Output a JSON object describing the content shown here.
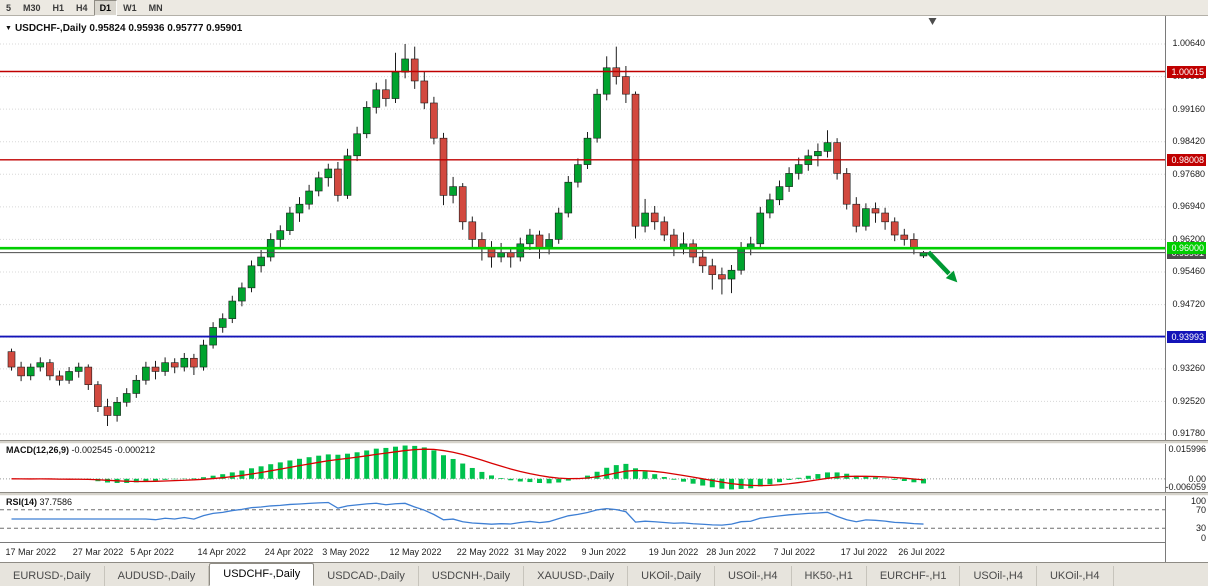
{
  "toolbar": {
    "timeframes": [
      {
        "label": "5",
        "active": false
      },
      {
        "label": "M30",
        "active": false
      },
      {
        "label": "H1",
        "active": false
      },
      {
        "label": "H4",
        "active": false
      },
      {
        "label": "D1",
        "active": true
      },
      {
        "label": "W1",
        "active": false
      },
      {
        "label": "MN",
        "active": false
      }
    ]
  },
  "icons": {
    "chart_menu": "▼"
  },
  "chart": {
    "title_symbol": "USDCHF-,Daily",
    "title_ohlc": "0.95824 0.95936 0.95777 0.95901"
  },
  "chart_data": {
    "type": "candlestick",
    "title": "USDCHF-,Daily",
    "last_ohlc": {
      "open": "0.95824",
      "high": "0.95936",
      "low": "0.95777",
      "close": "0.95901"
    },
    "ylim": [
      0.91643,
      1.01276
    ],
    "price_ticks": [
      "1.00640",
      "0.99900",
      "0.99160",
      "0.98420",
      "0.97680",
      "0.96940",
      "0.96200",
      "0.95460",
      "0.94720",
      "0.93980",
      "0.93260",
      "0.92520",
      "0.91780"
    ],
    "colors": {
      "up": "#00a32e",
      "down": "#d2493f",
      "wick": "#1c1c1c",
      "grid": "#d8d8d8"
    },
    "candles": [
      [
        0.9365,
        0.9372,
        0.9322,
        0.933
      ],
      [
        0.933,
        0.9342,
        0.9298,
        0.931
      ],
      [
        0.931,
        0.9338,
        0.93,
        0.933
      ],
      [
        0.933,
        0.9352,
        0.932,
        0.934
      ],
      [
        0.934,
        0.9348,
        0.93,
        0.931
      ],
      [
        0.931,
        0.9322,
        0.9288,
        0.93
      ],
      [
        0.93,
        0.933,
        0.9292,
        0.932
      ],
      [
        0.932,
        0.934,
        0.9306,
        0.933
      ],
      [
        0.933,
        0.9336,
        0.9278,
        0.929
      ],
      [
        0.929,
        0.9298,
        0.9228,
        0.924
      ],
      [
        0.924,
        0.9258,
        0.9196,
        0.922
      ],
      [
        0.922,
        0.9262,
        0.9206,
        0.925
      ],
      [
        0.925,
        0.9282,
        0.924,
        0.927
      ],
      [
        0.927,
        0.9312,
        0.926,
        0.93
      ],
      [
        0.93,
        0.9342,
        0.929,
        0.933
      ],
      [
        0.933,
        0.9344,
        0.9302,
        0.932
      ],
      [
        0.932,
        0.9352,
        0.931,
        0.934
      ],
      [
        0.934,
        0.935,
        0.9316,
        0.933
      ],
      [
        0.933,
        0.9362,
        0.932,
        0.935
      ],
      [
        0.935,
        0.936,
        0.9312,
        0.933
      ],
      [
        0.933,
        0.9392,
        0.9322,
        0.938
      ],
      [
        0.938,
        0.9432,
        0.9372,
        0.942
      ],
      [
        0.942,
        0.9452,
        0.9408,
        0.944
      ],
      [
        0.944,
        0.9492,
        0.943,
        0.948
      ],
      [
        0.948,
        0.9522,
        0.9468,
        0.951
      ],
      [
        0.951,
        0.9572,
        0.95,
        0.956
      ],
      [
        0.956,
        0.9596,
        0.9545,
        0.958
      ],
      [
        0.958,
        0.9634,
        0.957,
        0.962
      ],
      [
        0.962,
        0.9652,
        0.96,
        0.964
      ],
      [
        0.964,
        0.9694,
        0.963,
        0.968
      ],
      [
        0.968,
        0.9716,
        0.966,
        0.97
      ],
      [
        0.97,
        0.9744,
        0.9688,
        0.973
      ],
      [
        0.973,
        0.9774,
        0.9718,
        0.976
      ],
      [
        0.976,
        0.9792,
        0.974,
        0.978
      ],
      [
        0.978,
        0.9796,
        0.9706,
        0.972
      ],
      [
        0.972,
        0.9826,
        0.9712,
        0.981
      ],
      [
        0.981,
        0.9876,
        0.9798,
        0.986
      ],
      [
        0.986,
        0.9934,
        0.985,
        0.992
      ],
      [
        0.992,
        0.9976,
        0.9906,
        0.996
      ],
      [
        0.996,
        0.9984,
        0.9922,
        0.994
      ],
      [
        0.994,
        1.0044,
        0.993,
        1.0
      ],
      [
        1.0,
        1.0064,
        0.9986,
        1.003
      ],
      [
        1.003,
        1.0058,
        0.9962,
        0.998
      ],
      [
        0.998,
        1.0002,
        0.9916,
        0.993
      ],
      [
        0.993,
        0.9944,
        0.9836,
        0.985
      ],
      [
        0.985,
        0.9862,
        0.9698,
        0.972
      ],
      [
        0.972,
        0.9762,
        0.9702,
        0.974
      ],
      [
        0.974,
        0.9748,
        0.9642,
        0.966
      ],
      [
        0.966,
        0.9672,
        0.96,
        0.962
      ],
      [
        0.962,
        0.9636,
        0.9572,
        0.96
      ],
      [
        0.96,
        0.9616,
        0.9556,
        0.958
      ],
      [
        0.958,
        0.9612,
        0.9568,
        0.959
      ],
      [
        0.959,
        0.96,
        0.9556,
        0.958
      ],
      [
        0.958,
        0.9624,
        0.957,
        0.961
      ],
      [
        0.961,
        0.9644,
        0.9596,
        0.963
      ],
      [
        0.963,
        0.964,
        0.9576,
        0.96
      ],
      [
        0.96,
        0.9634,
        0.9586,
        0.962
      ],
      [
        0.962,
        0.9692,
        0.961,
        0.968
      ],
      [
        0.968,
        0.9764,
        0.967,
        0.975
      ],
      [
        0.975,
        0.9804,
        0.9738,
        0.979
      ],
      [
        0.979,
        0.9864,
        0.978,
        0.985
      ],
      [
        0.985,
        0.9962,
        0.984,
        0.995
      ],
      [
        0.995,
        1.0036,
        0.9936,
        1.001
      ],
      [
        1.001,
        1.0058,
        0.9972,
        0.999
      ],
      [
        0.999,
        1.0014,
        0.993,
        0.995
      ],
      [
        0.995,
        0.9956,
        0.9622,
        0.965
      ],
      [
        0.965,
        0.9712,
        0.9636,
        0.968
      ],
      [
        0.968,
        0.9696,
        0.9642,
        0.966
      ],
      [
        0.966,
        0.9672,
        0.9616,
        0.963
      ],
      [
        0.963,
        0.9644,
        0.9582,
        0.96
      ],
      [
        0.96,
        0.9636,
        0.9586,
        0.961
      ],
      [
        0.961,
        0.962,
        0.9566,
        0.958
      ],
      [
        0.958,
        0.9596,
        0.9544,
        0.956
      ],
      [
        0.956,
        0.9576,
        0.9506,
        0.954
      ],
      [
        0.954,
        0.9556,
        0.9495,
        0.953
      ],
      [
        0.953,
        0.9562,
        0.9498,
        0.955
      ],
      [
        0.955,
        0.9614,
        0.954,
        0.96
      ],
      [
        0.96,
        0.9626,
        0.9584,
        0.961
      ],
      [
        0.961,
        0.9694,
        0.96,
        0.968
      ],
      [
        0.968,
        0.9724,
        0.9668,
        0.971
      ],
      [
        0.971,
        0.9754,
        0.9698,
        0.974
      ],
      [
        0.974,
        0.9784,
        0.9728,
        0.977
      ],
      [
        0.977,
        0.9806,
        0.9756,
        0.979
      ],
      [
        0.979,
        0.9824,
        0.9776,
        0.981
      ],
      [
        0.981,
        0.9838,
        0.9786,
        0.982
      ],
      [
        0.982,
        0.9868,
        0.9806,
        0.984
      ],
      [
        0.984,
        0.985,
        0.9756,
        0.977
      ],
      [
        0.977,
        0.9782,
        0.9688,
        0.97
      ],
      [
        0.97,
        0.9716,
        0.9636,
        0.965
      ],
      [
        0.965,
        0.9702,
        0.964,
        0.969
      ],
      [
        0.969,
        0.9704,
        0.9658,
        0.968
      ],
      [
        0.968,
        0.9692,
        0.9642,
        0.966
      ],
      [
        0.966,
        0.967,
        0.9616,
        0.963
      ],
      [
        0.963,
        0.9644,
        0.9606,
        0.962
      ],
      [
        0.962,
        0.9634,
        0.9586,
        0.96
      ],
      [
        0.95824,
        0.95936,
        0.95777,
        0.95901
      ]
    ],
    "hlines": [
      {
        "price": 1.00015,
        "label": "1.00015",
        "color": "#c00000",
        "width": 1.4
      },
      {
        "price": 0.98008,
        "label": "0.98008",
        "color": "#c00000",
        "width": 1.4
      },
      {
        "price": 0.95901,
        "label": "0.95901",
        "color": "#4d4d4d",
        "width": 1
      },
      {
        "price": 0.93993,
        "label": "0.93993",
        "color": "#1414b8",
        "width": 1.8
      },
      {
        "price": 0.96,
        "label": "0.96000",
        "color": "#00ce00",
        "width": 2.6
      }
    ],
    "annotations": {
      "arrow": {
        "type": "arrow",
        "direction": "down-right",
        "color": "#009933",
        "from_price": 0.9591,
        "to_price": 0.9534,
        "at_index": 95
      }
    },
    "time_labels": [
      {
        "label": "17 Mar 2022",
        "i": 0
      },
      {
        "label": "27 Mar 2022",
        "i": 7
      },
      {
        "label": "5 Apr 2022",
        "i": 13
      },
      {
        "label": "14 Apr 2022",
        "i": 20
      },
      {
        "label": "24 Apr 2022",
        "i": 27
      },
      {
        "label": "3 May 2022",
        "i": 33
      },
      {
        "label": "12 May 2022",
        "i": 40
      },
      {
        "label": "22 May 2022",
        "i": 47
      },
      {
        "label": "31 May 2022",
        "i": 53
      },
      {
        "label": "9 Jun 2022",
        "i": 60
      },
      {
        "label": "19 Jun 2022",
        "i": 67
      },
      {
        "label": "28 Jun 2022",
        "i": 73
      },
      {
        "label": "7 Jul 2022",
        "i": 80
      },
      {
        "label": "17 Jul 2022",
        "i": 87
      },
      {
        "label": "26 Jul 2022",
        "i": 93
      }
    ],
    "indicators": {
      "macd": {
        "label": "MACD(12,26,9)",
        "values_text": "-0.002545 -0.000212",
        "params": [
          12,
          26,
          9
        ],
        "ylim": [
          -0.006059,
          0.015996
        ],
        "axis": [
          "0.015996",
          "0.00",
          "-0.006059"
        ],
        "histogram_color": "#00c24d",
        "signal_color": "#d80000"
      },
      "rsi": {
        "label": "RSI(14)",
        "value_text": "37.7586",
        "period": 14,
        "levels": [
          70,
          30
        ],
        "axis": [
          "100",
          "70",
          "30",
          "0"
        ],
        "line_color": "#3e7fd4"
      }
    }
  },
  "tabs": [
    {
      "label": "EURUSD-,Daily",
      "active": false
    },
    {
      "label": "AUDUSD-,Daily",
      "active": false
    },
    {
      "label": "USDCHF-,Daily",
      "active": true
    },
    {
      "label": "USDCAD-,Daily",
      "active": false
    },
    {
      "label": "USDCNH-,Daily",
      "active": false
    },
    {
      "label": "XAUUSD-,Daily",
      "active": false
    },
    {
      "label": "UKOil-,Daily",
      "active": false
    },
    {
      "label": "USOil-,H4",
      "active": false
    },
    {
      "label": "HK50-,H1",
      "active": false
    },
    {
      "label": "EURCHF-,H1",
      "active": false
    },
    {
      "label": "USOil-,H4",
      "active": false
    },
    {
      "label": "UKOil-,H4",
      "active": false
    }
  ]
}
